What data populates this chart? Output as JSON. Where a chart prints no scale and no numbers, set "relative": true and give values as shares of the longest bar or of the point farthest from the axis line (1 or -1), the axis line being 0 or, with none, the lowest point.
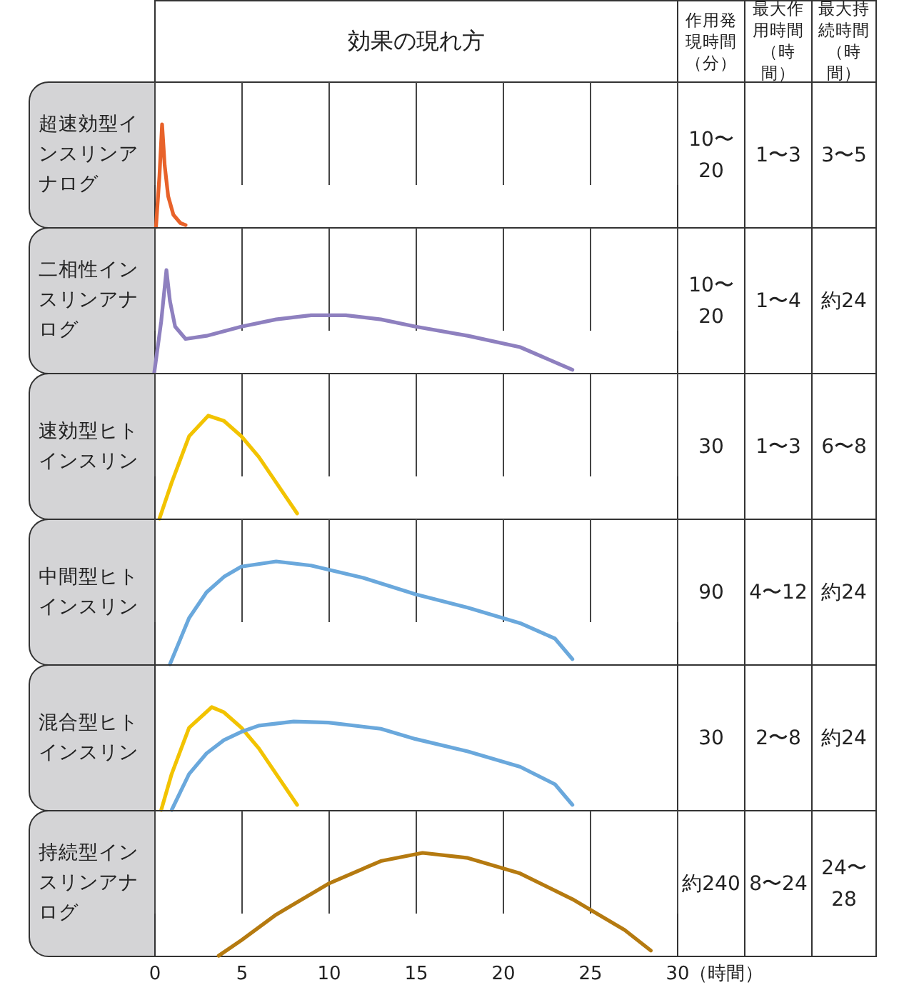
{
  "chart_data": [
    {
      "type": "other",
      "title": "効果の現れ方",
      "annotations": [
        "作用発現時間（分）",
        "最大作用時間（時間）",
        "最大持続時間（時間）"
      ]
    },
    {
      "type": "line",
      "ylabel": "超速効型インスリンアナログ",
      "relative": true,
      "xlim": [
        0,
        30
      ],
      "xticks": [
        0,
        5,
        10,
        15,
        20,
        25,
        30
      ],
      "grid": "x",
      "tick_labels": false,
      "annotations": [
        "10〜20",
        "1〜3",
        "3〜5"
      ],
      "series": [
        {
          "color": "#e8622a",
          "x": [
            0.1,
            0.3,
            0.45,
            0.6,
            0.8,
            1.1,
            1.5,
            1.8
          ],
          "values": [
            0,
            0.5,
            1,
            0.6,
            0.3,
            0.12,
            0.04,
            0.02
          ]
        }
      ]
    },
    {
      "type": "line",
      "ylabel": "二相性インスリンアナログ",
      "relative": true,
      "xlim": [
        0,
        30
      ],
      "xticks": [
        0,
        5,
        10,
        15,
        20,
        25,
        30
      ],
      "grid": "x",
      "tick_labels": false,
      "annotations": [
        "10〜20",
        "1〜4",
        "約24"
      ],
      "series": [
        {
          "color": "#8e80bf",
          "x": [
            0,
            0.4,
            0.7,
            0.9,
            1.2,
            1.8,
            3,
            5,
            7,
            9,
            11,
            13,
            15,
            18,
            21,
            24
          ],
          "values": [
            0,
            0.5,
            1,
            0.7,
            0.45,
            0.33,
            0.36,
            0.45,
            0.52,
            0.56,
            0.56,
            0.52,
            0.45,
            0.36,
            0.25,
            0.03
          ]
        }
      ]
    },
    {
      "type": "line",
      "ylabel": "速効型ヒトインスリン",
      "relative": true,
      "xlim": [
        0,
        30
      ],
      "xticks": [
        0,
        5,
        10,
        15,
        20,
        25,
        30
      ],
      "grid": "x",
      "tick_labels": false,
      "annotations": [
        "30",
        "1〜3",
        "6〜8"
      ],
      "series": [
        {
          "color": "#f2c300",
          "x": [
            0.3,
            1,
            2,
            3.1,
            4,
            5,
            6,
            7,
            8.2
          ],
          "values": [
            0,
            0.35,
            0.8,
            1,
            0.95,
            0.8,
            0.6,
            0.35,
            0.05
          ]
        }
      ]
    },
    {
      "type": "line",
      "ylabel": "中間型ヒトインスリン",
      "relative": true,
      "xlim": [
        0,
        30
      ],
      "xticks": [
        0,
        5,
        10,
        15,
        20,
        25,
        30
      ],
      "grid": "x",
      "tick_labels": false,
      "annotations": [
        "90",
        "4〜12",
        "約24"
      ],
      "series": [
        {
          "color": "#6aa8dc",
          "x": [
            0.9,
            2,
            3,
            4,
            5,
            7,
            9,
            12,
            15,
            18,
            21,
            23,
            24
          ],
          "values": [
            0,
            0.45,
            0.7,
            0.85,
            0.95,
            1,
            0.96,
            0.84,
            0.68,
            0.55,
            0.4,
            0.25,
            0.05
          ]
        }
      ]
    },
    {
      "type": "line",
      "ylabel": "混合型ヒトインスリン",
      "relative": true,
      "xlim": [
        0,
        30
      ],
      "xticks": [
        0,
        5,
        10,
        15,
        20,
        25,
        30
      ],
      "grid": "x",
      "tick_labels": false,
      "annotations": [
        "30",
        "2〜8",
        "約24"
      ],
      "series": [
        {
          "color": "#f2c300",
          "x": [
            0.4,
            1,
            2,
            3.3,
            4,
            5,
            6,
            7,
            8.2
          ],
          "values": [
            0,
            0.35,
            0.8,
            1,
            0.95,
            0.8,
            0.6,
            0.35,
            0.05
          ]
        },
        {
          "color": "#6aa8dc",
          "x": [
            1,
            2,
            3,
            4,
            5,
            6,
            8,
            10,
            13,
            15,
            18,
            21,
            23,
            24
          ],
          "values": [
            0,
            0.35,
            0.55,
            0.68,
            0.76,
            0.82,
            0.86,
            0.85,
            0.79,
            0.69,
            0.57,
            0.42,
            0.25,
            0.05
          ]
        }
      ]
    },
    {
      "type": "line",
      "ylabel": "持続型インスリンアナログ",
      "relative": true,
      "xlim": [
        0,
        30
      ],
      "xticks": [
        0,
        5,
        10,
        15,
        20,
        25,
        30
      ],
      "grid": "x",
      "tick_labels": "x",
      "xlabel": "（時間）",
      "annotations": [
        "約240",
        "8〜24",
        "24〜28"
      ],
      "series": [
        {
          "color": "#b57a10",
          "x": [
            3.7,
            5,
            7,
            10,
            13,
            15.4,
            18,
            21,
            24,
            27,
            28.5
          ],
          "values": [
            0,
            0.15,
            0.4,
            0.7,
            0.92,
            1,
            0.95,
            0.8,
            0.55,
            0.25,
            0.05
          ]
        }
      ]
    }
  ]
}
